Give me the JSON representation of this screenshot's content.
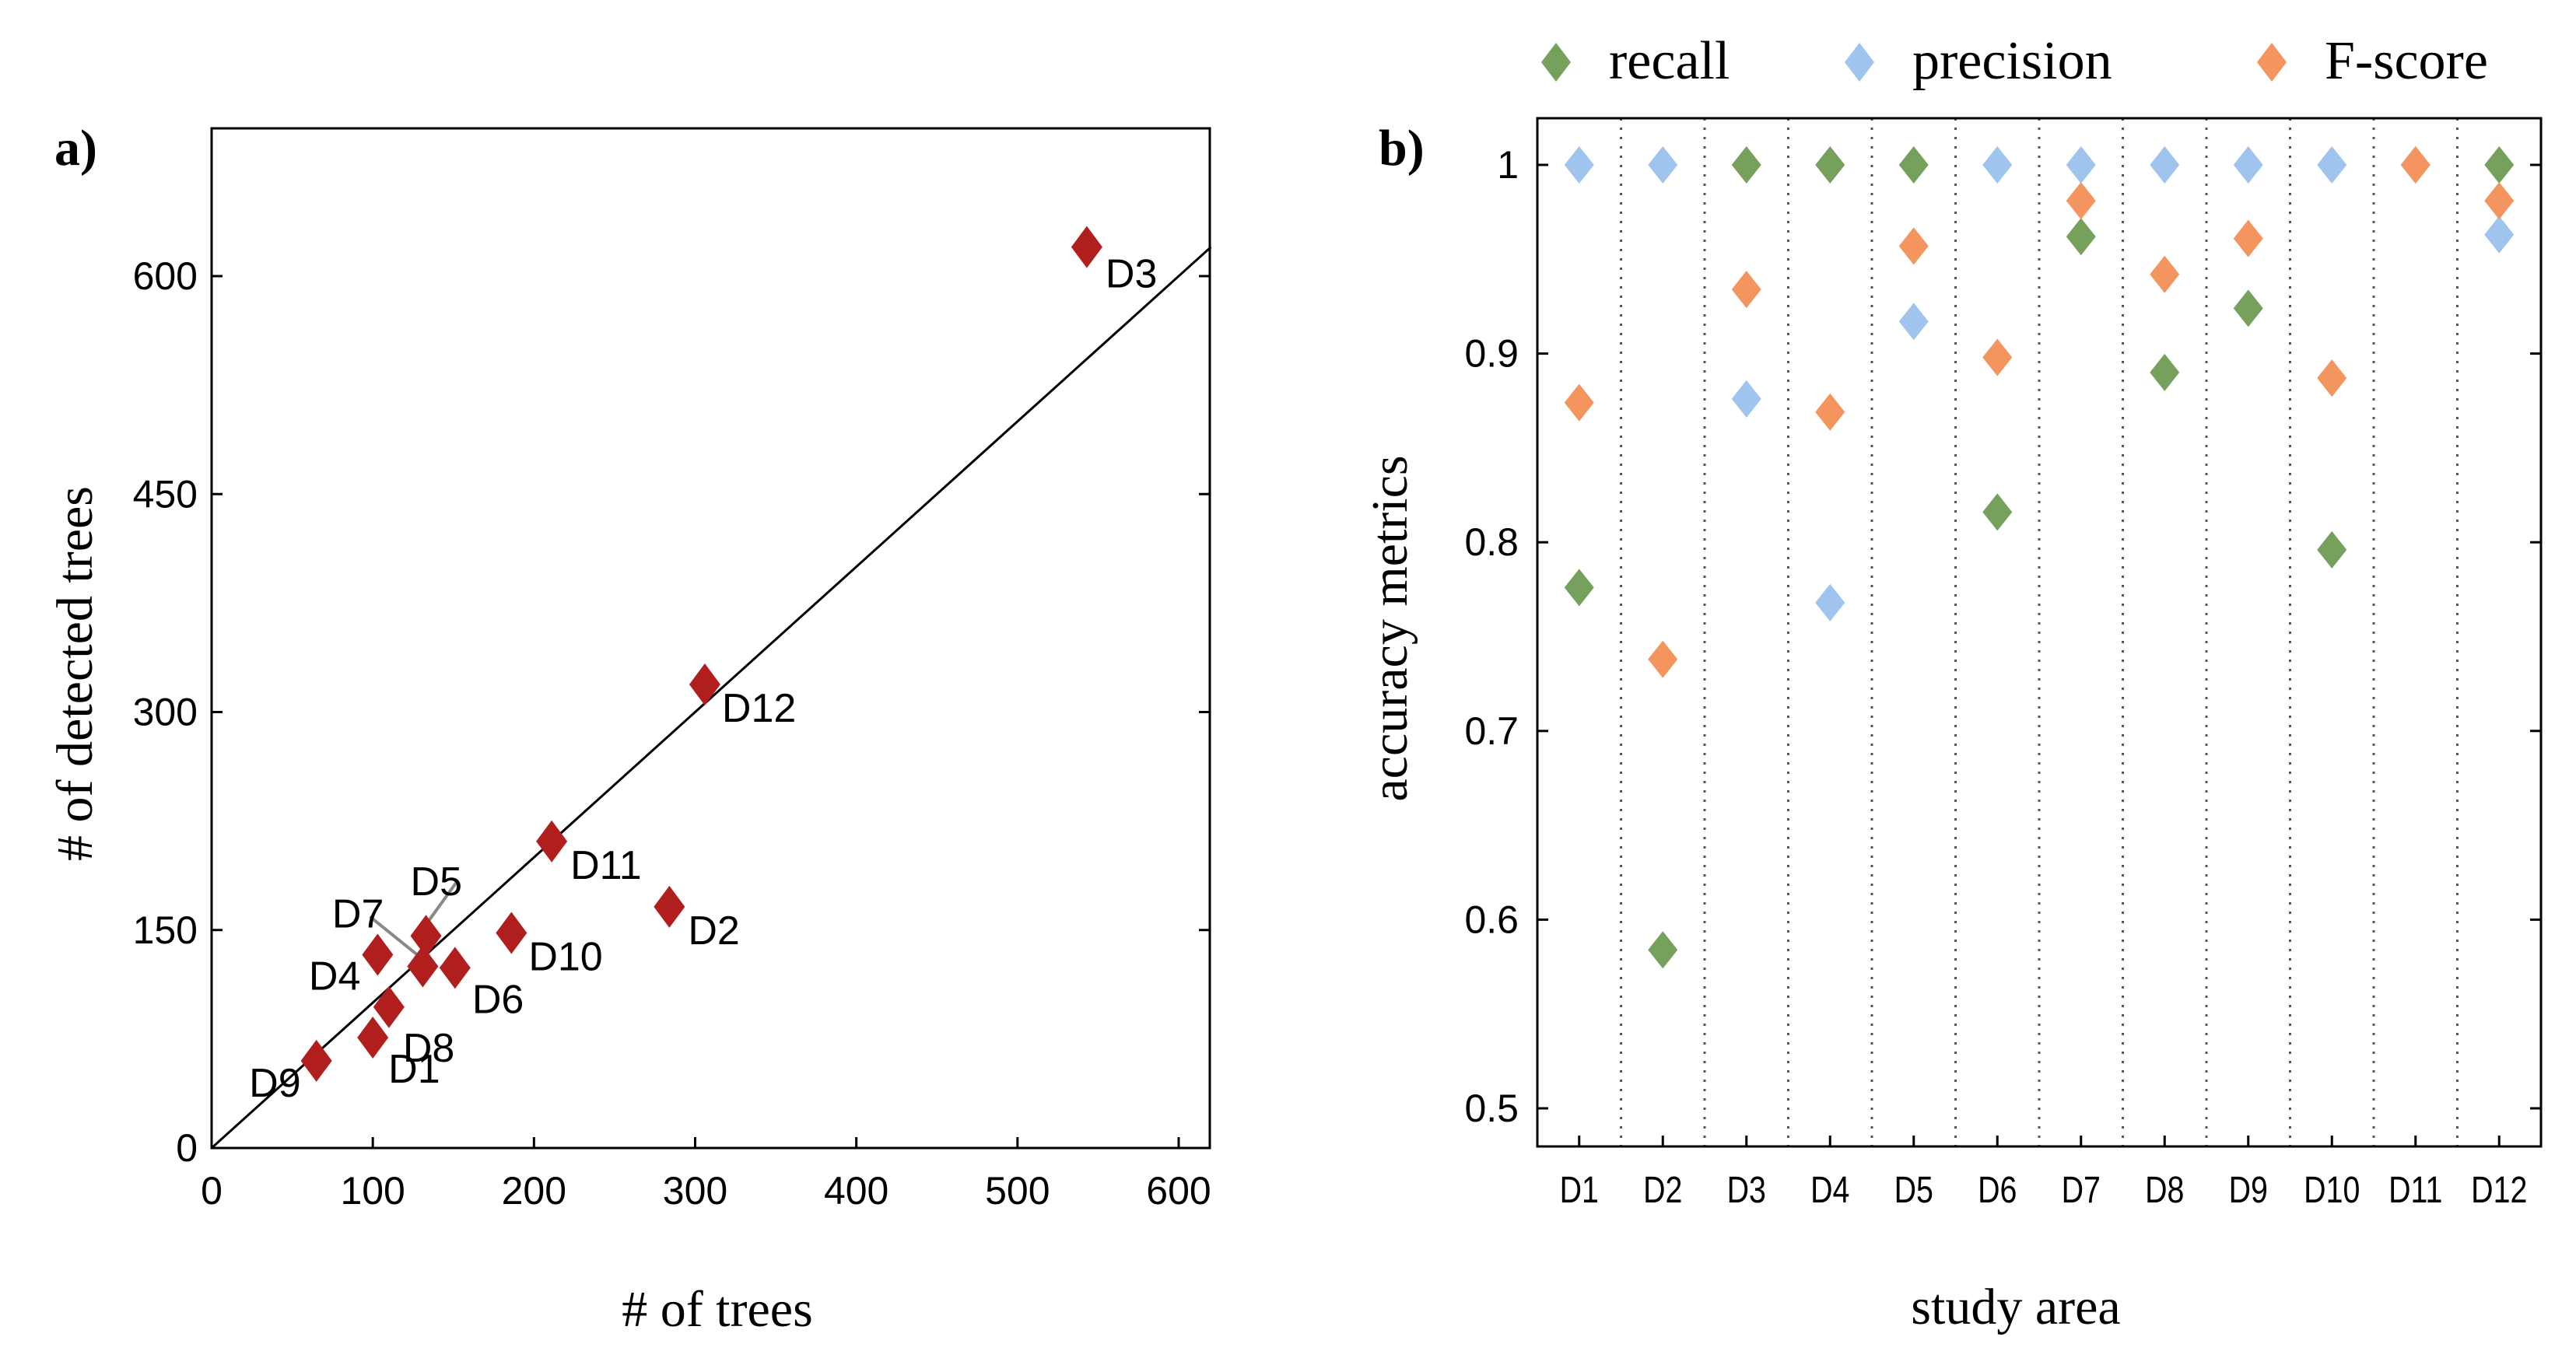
{
  "colors": {
    "marker_a": "#b01e1e",
    "recall": "#76a15c",
    "precision": "#9fc5ee",
    "fscore": "#f4955f",
    "axis": "#000000",
    "separator": "#555555",
    "leader": "#888888"
  },
  "chart_data": [
    {
      "type": "scatter",
      "panel_label": "a)",
      "xlabel": "# of trees",
      "ylabel": "# of detected trees",
      "xlim": [
        0,
        620
      ],
      "ylim": [
        0,
        700
      ],
      "xticks": [
        0,
        100,
        200,
        300,
        400,
        500,
        600
      ],
      "yticks": [
        0,
        150,
        300,
        450,
        600
      ],
      "reference_line": {
        "label": "1:1",
        "from": [
          0,
          0
        ],
        "to": [
          620,
          620
        ]
      },
      "points": [
        {
          "label": "D1",
          "x": 100,
          "y": 76
        },
        {
          "label": "D2",
          "x": 284,
          "y": 166
        },
        {
          "label": "D3",
          "x": 543,
          "y": 620
        },
        {
          "label": "D4",
          "x": 103,
          "y": 133
        },
        {
          "label": "D5",
          "x": 133,
          "y": 146
        },
        {
          "label": "D6",
          "x": 151,
          "y": 124
        },
        {
          "label": "D7",
          "x": 131,
          "y": 125
        },
        {
          "label": "D8",
          "x": 110,
          "y": 97
        },
        {
          "label": "D9",
          "x": 65,
          "y": 60
        },
        {
          "label": "D10",
          "x": 186,
          "y": 148
        },
        {
          "label": "D11",
          "x": 211,
          "y": 211
        },
        {
          "label": "D12",
          "x": 306,
          "y": 319
        }
      ]
    },
    {
      "type": "scatter",
      "panel_label": "b)",
      "xlabel": "study area",
      "ylabel": "accuracy metrics",
      "ylim": [
        0.48,
        1.02
      ],
      "yticks": [
        0.5,
        0.6,
        0.7,
        0.8,
        0.9,
        1
      ],
      "ytick_labels": [
        "0.5",
        "0.6",
        "0.7",
        "0.8",
        "0.9",
        "1"
      ],
      "categories": [
        "D1",
        "D2",
        "D3",
        "D4",
        "D5",
        "D6",
        "D7",
        "D8",
        "D9",
        "D10",
        "D11",
        "D12"
      ],
      "legend_position": "top",
      "series": [
        {
          "name": "recall",
          "color_key": "recall",
          "values": [
            0.776,
            0.584,
            1.0,
            1.0,
            1.0,
            0.816,
            0.962,
            0.89,
            0.924,
            0.796,
            1.0,
            1.0
          ]
        },
        {
          "name": "precision",
          "color_key": "precision",
          "values": [
            1.0,
            1.0,
            0.876,
            0.768,
            0.917,
            1.0,
            1.0,
            1.0,
            1.0,
            1.0,
            1.0,
            0.963
          ]
        },
        {
          "name": "F-score",
          "color_key": "fscore",
          "values": [
            0.874,
            0.738,
            0.934,
            0.869,
            0.957,
            0.898,
            0.981,
            0.942,
            0.961,
            0.887,
            1.0,
            0.981
          ]
        }
      ]
    }
  ]
}
